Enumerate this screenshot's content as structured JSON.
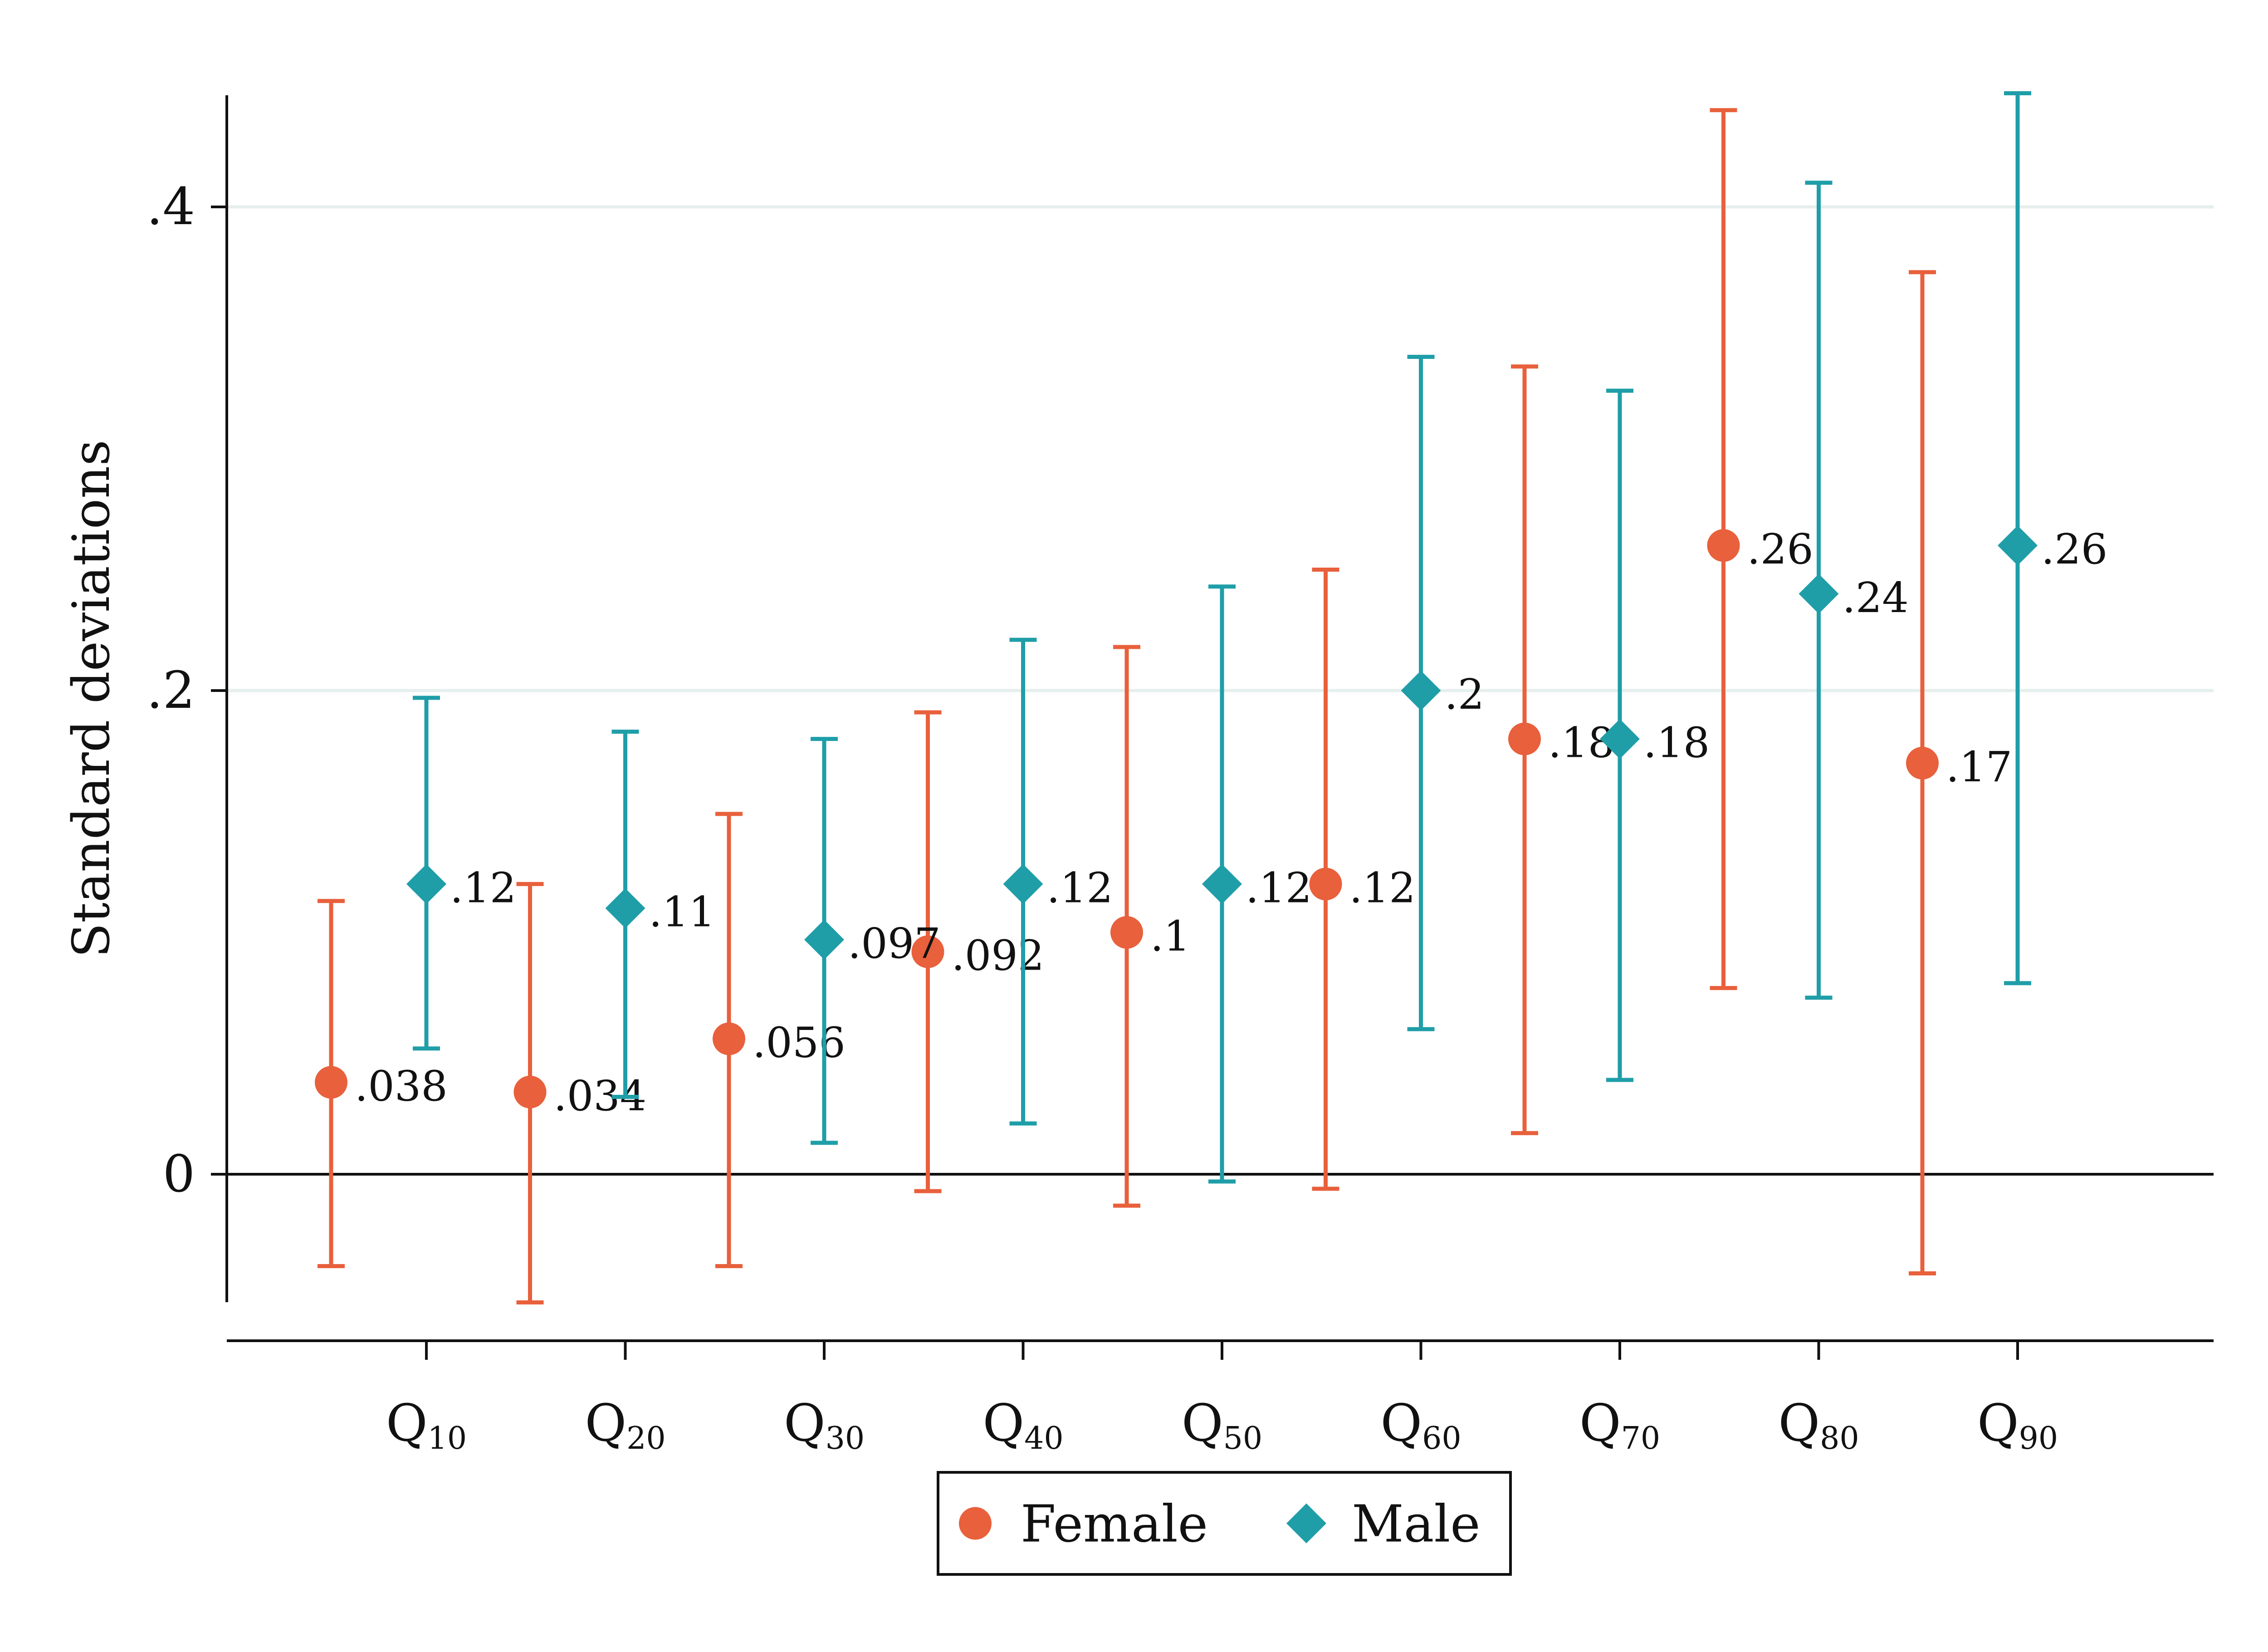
{
  "chart_data": {
    "type": "scatter",
    "subtype": "coefficient plot with confidence intervals",
    "ylabel": "Standard deviations",
    "ylim": [
      -0.053,
      0.446
    ],
    "yticks": [
      {
        "value": 0,
        "label": "0"
      },
      {
        "value": 0.2,
        "label": ".2"
      },
      {
        "value": 0.4,
        "label": ".4"
      }
    ],
    "grid": "horizontal at y ticks",
    "zero_line": true,
    "categories": [
      {
        "label": "Q",
        "sub": "10"
      },
      {
        "label": "Q",
        "sub": "20"
      },
      {
        "label": "Q",
        "sub": "30"
      },
      {
        "label": "Q",
        "sub": "40"
      },
      {
        "label": "Q",
        "sub": "50"
      },
      {
        "label": "Q",
        "sub": "60"
      },
      {
        "label": "Q",
        "sub": "70"
      },
      {
        "label": "Q",
        "sub": "80"
      },
      {
        "label": "Q",
        "sub": "90"
      }
    ],
    "series": [
      {
        "name": "Female",
        "marker": "circle",
        "color": "#e8603c",
        "points": [
          {
            "value": 0.038,
            "label": ".038",
            "lo": -0.038,
            "hi": 0.113
          },
          {
            "value": 0.034,
            "label": ".034",
            "lo": -0.053,
            "hi": 0.12
          },
          {
            "value": 0.056,
            "label": ".056",
            "lo": -0.038,
            "hi": 0.149
          },
          {
            "value": 0.092,
            "label": ".092",
            "lo": -0.007,
            "hi": 0.191
          },
          {
            "value": 0.1,
            "label": ".1",
            "lo": -0.013,
            "hi": 0.218
          },
          {
            "value": 0.12,
            "label": ".12",
            "lo": -0.006,
            "hi": 0.25
          },
          {
            "value": 0.18,
            "label": ".18",
            "lo": 0.017,
            "hi": 0.334
          },
          {
            "value": 0.26,
            "label": ".26",
            "lo": 0.077,
            "hi": 0.44
          },
          {
            "value": 0.17,
            "label": ".17",
            "lo": -0.041,
            "hi": 0.373
          }
        ]
      },
      {
        "name": "Male",
        "marker": "diamond",
        "color": "#1f9ea8",
        "points": [
          {
            "value": 0.12,
            "label": ".12",
            "lo": 0.052,
            "hi": 0.197
          },
          {
            "value": 0.11,
            "label": ".11",
            "lo": 0.032,
            "hi": 0.183
          },
          {
            "value": 0.097,
            "label": ".097",
            "lo": 0.013,
            "hi": 0.18
          },
          {
            "value": 0.12,
            "label": ".12",
            "lo": 0.021,
            "hi": 0.221
          },
          {
            "value": 0.12,
            "label": ".12",
            "lo": -0.003,
            "hi": 0.243
          },
          {
            "value": 0.2,
            "label": ".2",
            "lo": 0.06,
            "hi": 0.338
          },
          {
            "value": 0.18,
            "label": ".18",
            "lo": 0.039,
            "hi": 0.324
          },
          {
            "value": 0.24,
            "label": ".24",
            "lo": 0.073,
            "hi": 0.41
          },
          {
            "value": 0.26,
            "label": ".26",
            "lo": 0.079,
            "hi": 0.447
          }
        ]
      }
    ],
    "legend": {
      "position": "bottom-center",
      "entries": [
        "Female",
        "Male"
      ]
    },
    "colors": {
      "axis": "#111111",
      "grid": "#e6efee",
      "text": "#111111"
    }
  }
}
